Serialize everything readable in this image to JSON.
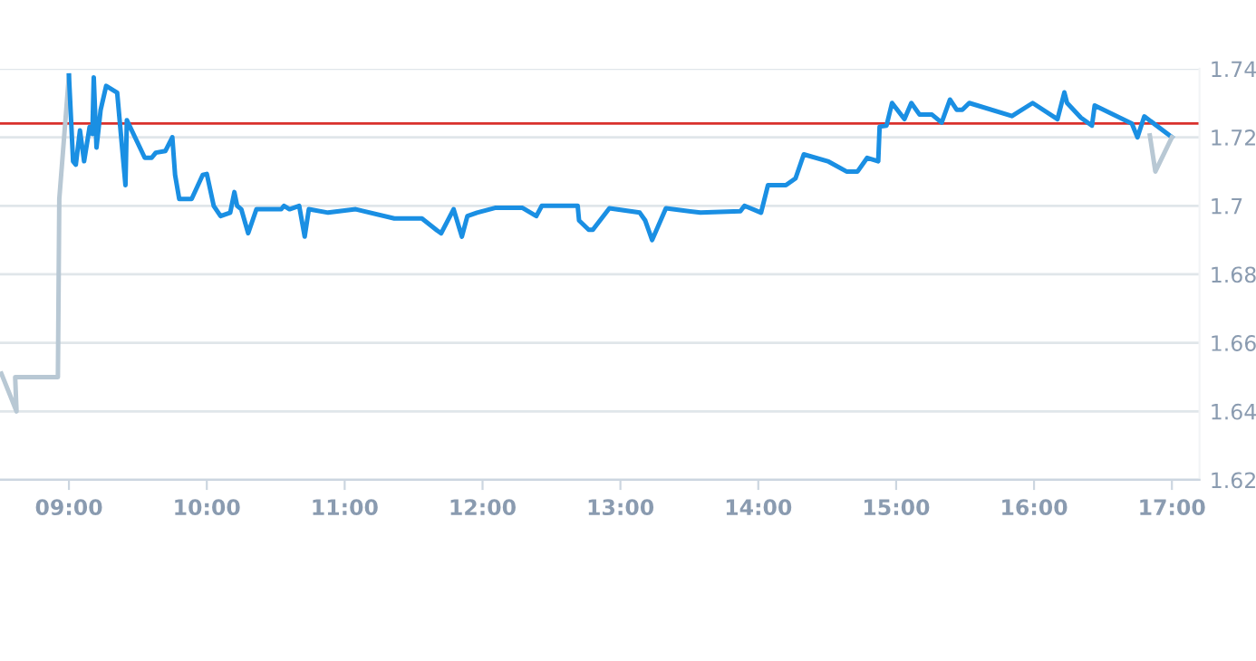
{
  "chart_data": {
    "type": "line",
    "series": [
      {
        "color": "#b8c8d4",
        "x": [
          8.51,
          8.62,
          8.61,
          8.92,
          8.93,
          9.0
        ],
        "values": [
          1.651,
          1.64,
          1.65,
          1.65,
          1.702,
          1.738
        ]
      },
      {
        "color": "#1a8fe3",
        "x": [
          9.0,
          9.03,
          9.05,
          9.08,
          9.11,
          9.15,
          9.17,
          9.18,
          9.2,
          9.23,
          9.27,
          9.35,
          9.41,
          9.42,
          9.55,
          9.6,
          9.63,
          9.7,
          9.75,
          9.77,
          9.8,
          9.89,
          9.97,
          10.0,
          10.05,
          10.1,
          10.17,
          10.2,
          10.22,
          10.25,
          10.3,
          10.36,
          10.54,
          10.56,
          10.6,
          10.67,
          10.71,
          10.74,
          10.88,
          11.08,
          11.36,
          11.56,
          11.67,
          11.7,
          11.79,
          11.85,
          11.89,
          11.96,
          12.09,
          12.29,
          12.39,
          12.43,
          12.69,
          12.7,
          12.77,
          12.8,
          12.92,
          13.14,
          13.18,
          13.23,
          13.33,
          13.58,
          13.87,
          13.9,
          14.02,
          14.07,
          14.2,
          14.27,
          14.33,
          14.51,
          14.64,
          14.72,
          14.79,
          14.87,
          14.88,
          14.93,
          14.97,
          15.06,
          15.11,
          15.17,
          15.26,
          15.33,
          15.39,
          15.44,
          15.48,
          15.53,
          15.84,
          15.99,
          16.17,
          16.22,
          16.24,
          16.34,
          16.42,
          16.44,
          16.71,
          16.75,
          16.8,
          17.0
        ],
        "values": [
          1.738,
          1.713,
          1.712,
          1.722,
          1.713,
          1.723,
          1.721,
          1.7375,
          1.717,
          1.728,
          1.735,
          1.733,
          1.706,
          1.725,
          1.714,
          1.714,
          1.7155,
          1.716,
          1.72,
          1.709,
          1.702,
          1.702,
          1.709,
          1.7093,
          1.7,
          1.697,
          1.698,
          1.704,
          1.7,
          1.699,
          1.692,
          1.699,
          1.699,
          1.7,
          1.699,
          1.7,
          1.691,
          1.699,
          1.698,
          1.699,
          1.6963,
          1.6963,
          1.6928,
          1.692,
          1.699,
          1.691,
          1.697,
          1.698,
          1.6994,
          1.6994,
          1.697,
          1.7,
          1.7,
          1.6957,
          1.693,
          1.693,
          1.6993,
          1.698,
          1.6957,
          1.69,
          1.6993,
          1.698,
          1.6984,
          1.7,
          1.698,
          1.706,
          1.706,
          1.708,
          1.715,
          1.7129,
          1.71,
          1.71,
          1.714,
          1.713,
          1.7231,
          1.7234,
          1.73,
          1.7253,
          1.73,
          1.7266,
          1.7266,
          1.7243,
          1.731,
          1.728,
          1.728,
          1.73,
          1.7262,
          1.73,
          1.7253,
          1.7331,
          1.73,
          1.7257,
          1.7234,
          1.7293,
          1.724,
          1.72,
          1.7261,
          1.72
        ]
      },
      {
        "color": "#b8c8d4",
        "x": [
          16.84,
          16.88,
          17.0
        ],
        "values": [
          1.7205,
          1.71,
          1.72
        ]
      }
    ],
    "xlim": [
      8.5,
      17.2
    ],
    "xticks": [
      {
        "value": 9,
        "label": "09:00"
      },
      {
        "value": 10,
        "label": "10:00"
      },
      {
        "value": 11,
        "label": "11:00"
      },
      {
        "value": 12,
        "label": "12:00"
      },
      {
        "value": 13,
        "label": "13:00"
      },
      {
        "value": 14,
        "label": "14:00"
      },
      {
        "value": 15,
        "label": "15:00"
      },
      {
        "value": 16,
        "label": "16:00"
      },
      {
        "value": 17,
        "label": "17:00"
      }
    ],
    "ylim": [
      1.62,
      1.74
    ],
    "yticks": [
      1.62,
      1.64,
      1.66,
      1.68,
      {
        "value": 1.7,
        "label": "1.7"
      },
      1.72,
      1.74
    ],
    "ref_lines": [
      {
        "axis": "y",
        "value": 1.724,
        "color": "#d9302c"
      }
    ],
    "grid": "y",
    "marker": "none",
    "line_style": "solid"
  }
}
